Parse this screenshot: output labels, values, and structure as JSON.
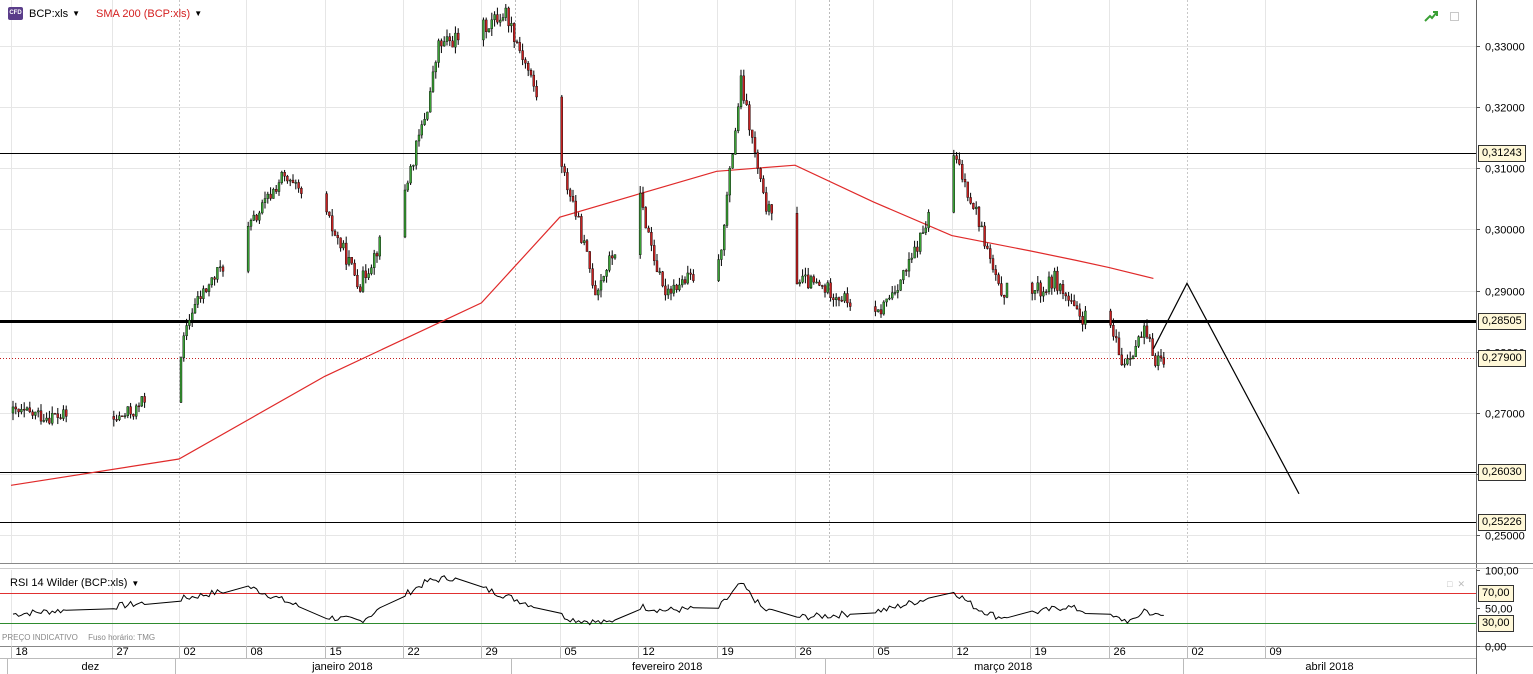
{
  "legend": {
    "cfd_label": "CFD",
    "instrument": "BCP:xls",
    "sma": "SMA 200 (BCP:xls)",
    "rsi": "RSI 14 Wilder (BCP:xls)"
  },
  "info": {
    "price_type": "PREÇO INDICATIVO",
    "timezone": "Fuso horário: TMG"
  },
  "icons": {
    "top_trend": "trend-up-icon",
    "top_window": "window-icon",
    "rsi_window": "window-icon",
    "rsi_close": "close-icon"
  },
  "colors": {
    "bull": "#3aa035",
    "bear": "#c42020",
    "sma": "#e02a2a",
    "rsi_high": "#e03030",
    "rsi_low": "#2e8b2e",
    "badge_bg": "#fff8d8"
  },
  "chart_data": {
    "type": "candlestick",
    "ylim": [
      0.2455,
      0.3375
    ],
    "y_ticks": [
      "0,33000",
      "0,32000",
      "0,31000",
      "0,30000",
      "0,29000",
      "0,28000",
      "0,27000",
      "0,26000",
      "0,25000"
    ],
    "y_tick_values": [
      0.33,
      0.32,
      0.31,
      0.3,
      0.29,
      0.28,
      0.27,
      0.26,
      0.25
    ],
    "horizontal_lines": [
      {
        "value": 0.31243,
        "label": "0,31243",
        "style": "thin"
      },
      {
        "value": 0.28505,
        "label": "0,28505",
        "style": "thick"
      },
      {
        "value": 0.2603,
        "label": "0,26030",
        "style": "thin"
      },
      {
        "value": 0.25226,
        "label": "0,25226",
        "style": "thin"
      }
    ],
    "last_price": {
      "value": 0.279,
      "label": "0,27900"
    },
    "x_day_labels": [
      "18",
      "27",
      "02",
      "08",
      "15",
      "22",
      "29",
      "05",
      "12",
      "19",
      "26",
      "05",
      "12",
      "19",
      "26",
      "02",
      "09"
    ],
    "x_month_labels": [
      "dez",
      "janeiro 2018",
      "fevereiro 2018",
      "março 2018",
      "abril 2018"
    ],
    "anchors": [
      {
        "date": "2017-12-18",
        "price": 0.27
      },
      {
        "date": "2017-12-27",
        "price": 0.2688
      },
      {
        "date": "2017-12-29",
        "price": 0.2705
      },
      {
        "date": "2018-01-02",
        "price": 0.28
      },
      {
        "date": "2018-01-03",
        "price": 0.287
      },
      {
        "date": "2018-01-08",
        "price": 0.3
      },
      {
        "date": "2018-01-11",
        "price": 0.3085
      },
      {
        "date": "2018-01-15",
        "price": 0.302
      },
      {
        "date": "2018-01-18",
        "price": 0.291
      },
      {
        "date": "2018-01-22",
        "price": 0.3065
      },
      {
        "date": "2018-01-24",
        "price": 0.32
      },
      {
        "date": "2018-01-25",
        "price": 0.33
      },
      {
        "date": "2018-01-29",
        "price": 0.333
      },
      {
        "date": "2018-01-31",
        "price": 0.3355
      },
      {
        "date": "2018-02-02",
        "price": 0.326
      },
      {
        "date": "2018-02-06",
        "price": 0.3045
      },
      {
        "date": "2018-02-08",
        "price": 0.29
      },
      {
        "date": "2018-02-12",
        "price": 0.305
      },
      {
        "date": "2018-02-14",
        "price": 0.29
      },
      {
        "date": "2018-02-19",
        "price": 0.294
      },
      {
        "date": "2018-02-21",
        "price": 0.324
      },
      {
        "date": "2018-02-23",
        "price": 0.305
      },
      {
        "date": "2018-02-26",
        "price": 0.292
      },
      {
        "date": "2018-03-01",
        "price": 0.29
      },
      {
        "date": "2018-03-05",
        "price": 0.2855
      },
      {
        "date": "2018-03-08",
        "price": 0.294
      },
      {
        "date": "2018-03-12",
        "price": 0.312
      },
      {
        "date": "2018-03-14",
        "price": 0.303
      },
      {
        "date": "2018-03-16",
        "price": 0.29
      },
      {
        "date": "2018-03-20",
        "price": 0.29
      },
      {
        "date": "2018-03-21",
        "price": 0.292
      },
      {
        "date": "2018-03-23",
        "price": 0.286
      },
      {
        "date": "2018-03-26",
        "price": 0.284
      },
      {
        "date": "2018-03-27",
        "price": 0.278
      },
      {
        "date": "2018-03-29",
        "price": 0.283
      },
      {
        "date": "2018-03-30",
        "price": 0.279
      }
    ],
    "sma_200": [
      {
        "date": "2017-12-18",
        "value": 0.2582
      },
      {
        "date": "2018-01-02",
        "value": 0.2625
      },
      {
        "date": "2018-01-15",
        "value": 0.276
      },
      {
        "date": "2018-01-29",
        "value": 0.288
      },
      {
        "date": "2018-02-05",
        "value": 0.302
      },
      {
        "date": "2018-02-19",
        "value": 0.3095
      },
      {
        "date": "2018-02-26",
        "value": 0.3105
      },
      {
        "date": "2018-03-05",
        "value": 0.3045
      },
      {
        "date": "2018-03-12",
        "value": 0.299
      },
      {
        "date": "2018-03-19",
        "value": 0.2965
      },
      {
        "date": "2018-03-23",
        "value": 0.295
      },
      {
        "date": "2018-03-26",
        "value": 0.2938
      },
      {
        "date": "2018-03-30",
        "value": 0.292
      }
    ],
    "projection_line": [
      {
        "date": "2018-03-30",
        "price": 0.2805
      },
      {
        "date": "2018-04-02",
        "price": 0.2912
      },
      {
        "date": "2018-04-12",
        "price": 0.2568
      }
    ],
    "rsi": {
      "ylim": [
        0,
        100
      ],
      "ticks": [
        "100,00",
        "50,00",
        "0,00"
      ],
      "tick_values": [
        100,
        50,
        0
      ],
      "levels": [
        {
          "value": 70,
          "label": "70,00"
        },
        {
          "value": 30,
          "label": "30,00"
        }
      ],
      "anchors": [
        {
          "date": "2017-12-18",
          "value": 42
        },
        {
          "date": "2017-12-27",
          "value": 52
        },
        {
          "date": "2018-01-02",
          "value": 62
        },
        {
          "date": "2018-01-08",
          "value": 78
        },
        {
          "date": "2018-01-15",
          "value": 38
        },
        {
          "date": "2018-01-18",
          "value": 33
        },
        {
          "date": "2018-01-24",
          "value": 85
        },
        {
          "date": "2018-01-26",
          "value": 90
        },
        {
          "date": "2018-01-31",
          "value": 66
        },
        {
          "date": "2018-02-06",
          "value": 35
        },
        {
          "date": "2018-02-09",
          "value": 30
        },
        {
          "date": "2018-02-12",
          "value": 52
        },
        {
          "date": "2018-02-14",
          "value": 47
        },
        {
          "date": "2018-02-19",
          "value": 50
        },
        {
          "date": "2018-02-21",
          "value": 82
        },
        {
          "date": "2018-02-23",
          "value": 48
        },
        {
          "date": "2018-02-26",
          "value": 38
        },
        {
          "date": "2018-03-01",
          "value": 40
        },
        {
          "date": "2018-03-06",
          "value": 48
        },
        {
          "date": "2018-03-12",
          "value": 72
        },
        {
          "date": "2018-03-14",
          "value": 50
        },
        {
          "date": "2018-03-16",
          "value": 38
        },
        {
          "date": "2018-03-20",
          "value": 46
        },
        {
          "date": "2018-03-22",
          "value": 52
        },
        {
          "date": "2018-03-26",
          "value": 38
        },
        {
          "date": "2018-03-28",
          "value": 32
        },
        {
          "date": "2018-03-29",
          "value": 48
        },
        {
          "date": "2018-03-30",
          "value": 40
        }
      ]
    }
  }
}
